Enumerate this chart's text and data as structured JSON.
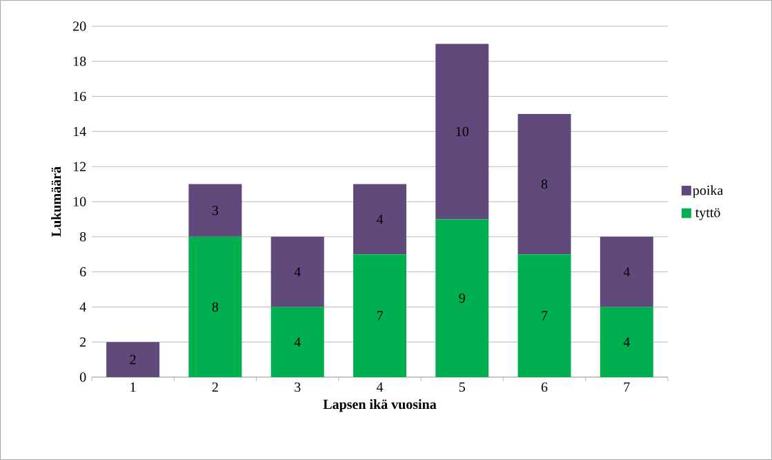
{
  "chart_data": {
    "type": "bar",
    "stacked": true,
    "xlabel": "Lapsen ikä vuosina",
    "ylabel": "Lukumäärä",
    "categories": [
      "1",
      "2",
      "3",
      "4",
      "5",
      "6",
      "7"
    ],
    "series": [
      {
        "name": "tyttö",
        "color": "#00b050",
        "values": [
          0,
          8,
          4,
          7,
          9,
          7,
          4
        ],
        "value_labels": [
          null,
          "8",
          "4",
          "7",
          "9",
          "7",
          "4"
        ]
      },
      {
        "name": "poika",
        "color": "#604a7b",
        "values": [
          2,
          3,
          4,
          4,
          10,
          8,
          4
        ],
        "value_labels": [
          "2",
          "3",
          "4",
          "4",
          "10",
          "8",
          "4"
        ]
      }
    ],
    "ylim": [
      0,
      20
    ],
    "yticks": [
      0,
      2,
      4,
      6,
      8,
      10,
      12,
      14,
      16,
      18,
      20
    ],
    "grid": "y",
    "legend": "right"
  }
}
